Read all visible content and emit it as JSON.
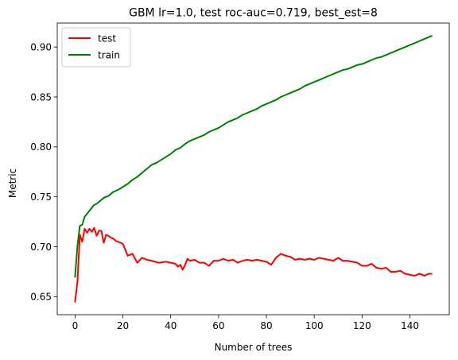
{
  "chart_data": {
    "type": "line",
    "title": "GBM lr=1.0, test roc-auc=0.719, best_est=8",
    "xlabel": "Number of trees",
    "ylabel": "Metric",
    "xlim": [
      -7.45,
      156.45
    ],
    "ylim": [
      0.632,
      0.924
    ],
    "xticks": [
      0,
      20,
      40,
      60,
      80,
      100,
      120,
      140
    ],
    "yticks": [
      0.65,
      0.7,
      0.75,
      0.8,
      0.85,
      0.9
    ],
    "grid": false,
    "legend_position": "top-left",
    "series": [
      {
        "name": "test",
        "color": "#ff0000",
        "points": [
          [
            0,
            0.645
          ],
          [
            1,
            0.665
          ],
          [
            2,
            0.712
          ],
          [
            3,
            0.705
          ],
          [
            4,
            0.718
          ],
          [
            5,
            0.714
          ],
          [
            6,
            0.718
          ],
          [
            7,
            0.715
          ],
          [
            8,
            0.719
          ],
          [
            9,
            0.711
          ],
          [
            10,
            0.716
          ],
          [
            11,
            0.716
          ],
          [
            12,
            0.704
          ],
          [
            13,
            0.712
          ],
          [
            14,
            0.711
          ],
          [
            15,
            0.709
          ],
          [
            16,
            0.708
          ],
          [
            17,
            0.706
          ],
          [
            18,
            0.705
          ],
          [
            19,
            0.704
          ],
          [
            20,
            0.703
          ],
          [
            22,
            0.691
          ],
          [
            24,
            0.693
          ],
          [
            26,
            0.684
          ],
          [
            28,
            0.689
          ],
          [
            30,
            0.687
          ],
          [
            32,
            0.686
          ],
          [
            35,
            0.684
          ],
          [
            38,
            0.685
          ],
          [
            40,
            0.684
          ],
          [
            42,
            0.683
          ],
          [
            43,
            0.68
          ],
          [
            44,
            0.682
          ],
          [
            45,
            0.677
          ],
          [
            46,
            0.682
          ],
          [
            47,
            0.688
          ],
          [
            48,
            0.686
          ],
          [
            50,
            0.687
          ],
          [
            52,
            0.684
          ],
          [
            54,
            0.684
          ],
          [
            56,
            0.681
          ],
          [
            58,
            0.686
          ],
          [
            60,
            0.686
          ],
          [
            62,
            0.688
          ],
          [
            64,
            0.686
          ],
          [
            66,
            0.687
          ],
          [
            68,
            0.684
          ],
          [
            70,
            0.686
          ],
          [
            72,
            0.687
          ],
          [
            74,
            0.686
          ],
          [
            76,
            0.687
          ],
          [
            78,
            0.686
          ],
          [
            80,
            0.685
          ],
          [
            82,
            0.682
          ],
          [
            84,
            0.689
          ],
          [
            86,
            0.693
          ],
          [
            88,
            0.691
          ],
          [
            90,
            0.69
          ],
          [
            92,
            0.687
          ],
          [
            94,
            0.688
          ],
          [
            96,
            0.687
          ],
          [
            98,
            0.688
          ],
          [
            100,
            0.687
          ],
          [
            102,
            0.689
          ],
          [
            104,
            0.688
          ],
          [
            106,
            0.687
          ],
          [
            108,
            0.686
          ],
          [
            110,
            0.689
          ],
          [
            112,
            0.686
          ],
          [
            114,
            0.686
          ],
          [
            116,
            0.685
          ],
          [
            118,
            0.684
          ],
          [
            120,
            0.681
          ],
          [
            122,
            0.681
          ],
          [
            124,
            0.683
          ],
          [
            126,
            0.679
          ],
          [
            128,
            0.678
          ],
          [
            130,
            0.679
          ],
          [
            132,
            0.675
          ],
          [
            134,
            0.675
          ],
          [
            136,
            0.676
          ],
          [
            138,
            0.673
          ],
          [
            140,
            0.672
          ],
          [
            142,
            0.671
          ],
          [
            144,
            0.673
          ],
          [
            146,
            0.671
          ],
          [
            148,
            0.673
          ],
          [
            149,
            0.673
          ]
        ]
      },
      {
        "name": "train",
        "color": "#008000",
        "points": [
          [
            0,
            0.67
          ],
          [
            1,
            0.701
          ],
          [
            2,
            0.721
          ],
          [
            3,
            0.722
          ],
          [
            4,
            0.73
          ],
          [
            5,
            0.733
          ],
          [
            6,
            0.736
          ],
          [
            7,
            0.739
          ],
          [
            8,
            0.742
          ],
          [
            9,
            0.743
          ],
          [
            10,
            0.745
          ],
          [
            12,
            0.749
          ],
          [
            14,
            0.751
          ],
          [
            16,
            0.755
          ],
          [
            18,
            0.757
          ],
          [
            20,
            0.76
          ],
          [
            22,
            0.763
          ],
          [
            24,
            0.767
          ],
          [
            26,
            0.77
          ],
          [
            28,
            0.774
          ],
          [
            30,
            0.778
          ],
          [
            32,
            0.782
          ],
          [
            34,
            0.784
          ],
          [
            36,
            0.787
          ],
          [
            38,
            0.79
          ],
          [
            40,
            0.793
          ],
          [
            42,
            0.797
          ],
          [
            44,
            0.799
          ],
          [
            46,
            0.803
          ],
          [
            48,
            0.806
          ],
          [
            50,
            0.808
          ],
          [
            52,
            0.81
          ],
          [
            54,
            0.812
          ],
          [
            56,
            0.815
          ],
          [
            58,
            0.817
          ],
          [
            60,
            0.819
          ],
          [
            62,
            0.822
          ],
          [
            64,
            0.825
          ],
          [
            66,
            0.827
          ],
          [
            68,
            0.829
          ],
          [
            70,
            0.832
          ],
          [
            72,
            0.834
          ],
          [
            74,
            0.836
          ],
          [
            76,
            0.838
          ],
          [
            78,
            0.841
          ],
          [
            80,
            0.843
          ],
          [
            82,
            0.845
          ],
          [
            84,
            0.847
          ],
          [
            86,
            0.85
          ],
          [
            88,
            0.852
          ],
          [
            90,
            0.854
          ],
          [
            92,
            0.856
          ],
          [
            94,
            0.858
          ],
          [
            96,
            0.861
          ],
          [
            98,
            0.863
          ],
          [
            100,
            0.865
          ],
          [
            102,
            0.867
          ],
          [
            104,
            0.869
          ],
          [
            106,
            0.871
          ],
          [
            108,
            0.873
          ],
          [
            110,
            0.875
          ],
          [
            112,
            0.877
          ],
          [
            114,
            0.878
          ],
          [
            116,
            0.88
          ],
          [
            118,
            0.882
          ],
          [
            120,
            0.883
          ],
          [
            122,
            0.885
          ],
          [
            124,
            0.887
          ],
          [
            126,
            0.889
          ],
          [
            128,
            0.89
          ],
          [
            130,
            0.892
          ],
          [
            132,
            0.894
          ],
          [
            134,
            0.896
          ],
          [
            136,
            0.898
          ],
          [
            138,
            0.9
          ],
          [
            140,
            0.902
          ],
          [
            142,
            0.904
          ],
          [
            144,
            0.906
          ],
          [
            146,
            0.908
          ],
          [
            148,
            0.91
          ],
          [
            149,
            0.911
          ]
        ]
      }
    ]
  }
}
